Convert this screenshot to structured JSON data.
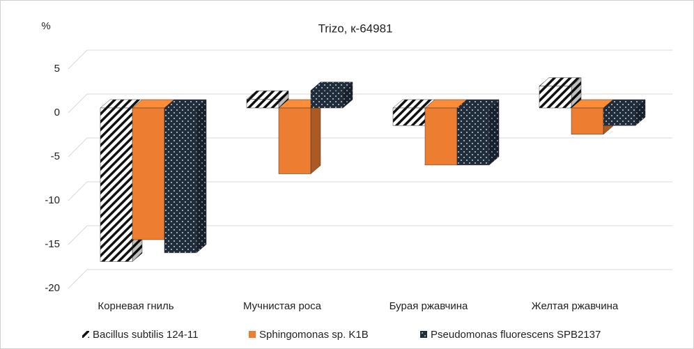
{
  "chart_data": {
    "type": "bar3d",
    "title": "Trizo, к-64981",
    "ylabel": "%",
    "categories": [
      "Корневая гниль",
      "Мучнистая роса",
      "Бурая ржавчина",
      "Желтая ржавчина"
    ],
    "series": [
      {
        "name": "Bacillus subtilis 124-11",
        "color": "#000000",
        "values": [
          -17.5,
          1,
          -2,
          2.5
        ]
      },
      {
        "name": "Sphingomonas sp. K1B",
        "color": "#ed7d31",
        "values": [
          -15,
          -7.5,
          -6.5,
          -3
        ]
      },
      {
        "name": "Pseudomonas fluorescens SPB2137",
        "color": "#1f2d3d",
        "values": [
          -16.5,
          2,
          -6.5,
          -2
        ]
      }
    ],
    "ylim": [
      -20,
      5
    ],
    "yticks": [
      -20,
      -15,
      -10,
      -5,
      0,
      5
    ],
    "grid": true,
    "legend": "bottom"
  }
}
